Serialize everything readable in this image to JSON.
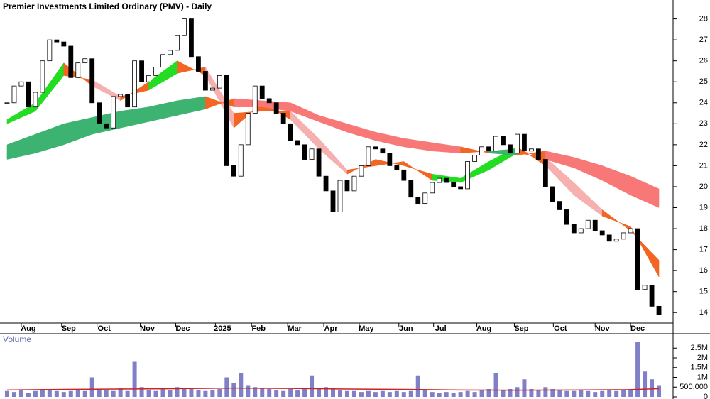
{
  "chart_data": {
    "type": "candlestick",
    "title": "Premier Investments Limited Ordinary (PMV) - Daily",
    "x": [
      0,
      1,
      2,
      3,
      4,
      5,
      6,
      7,
      8,
      9,
      10,
      11,
      12,
      13,
      14,
      15,
      16,
      17,
      18,
      19,
      20,
      21,
      22,
      23,
      24,
      25,
      26,
      27,
      28,
      29,
      30,
      31,
      32,
      33,
      34,
      35,
      36,
      37,
      38,
      39,
      40,
      41,
      42,
      43,
      44,
      45,
      46,
      47,
      48,
      49,
      50,
      51,
      52,
      53,
      54,
      55,
      56,
      57,
      58,
      59,
      60,
      61,
      62,
      63,
      64,
      65,
      66,
      67,
      68,
      69,
      70,
      71,
      72,
      73,
      74,
      75,
      76,
      77,
      78,
      79,
      80,
      81,
      82,
      83,
      84,
      85,
      86,
      87,
      88,
      89,
      90,
      91,
      92
    ],
    "close": [
      24.0,
      24.8,
      25.0,
      23.8,
      24.5,
      26.0,
      27.0,
      26.9,
      26.7,
      25.2,
      25.9,
      26.1,
      24.0,
      23.0,
      22.8,
      24.3,
      24.4,
      23.8,
      26.0,
      25.0,
      25.3,
      25.7,
      26.3,
      26.5,
      27.2,
      28.0,
      26.2,
      25.5,
      24.6,
      24.7,
      25.3,
      21.0,
      20.5,
      22.0,
      23.5,
      24.8,
      24.2,
      24.0,
      23.5,
      23.0,
      22.2,
      22.0,
      21.3,
      21.8,
      20.5,
      19.8,
      18.8,
      20.3,
      19.8,
      20.5,
      21.0,
      21.9,
      21.8,
      21.6,
      21.0,
      20.8,
      20.3,
      19.5,
      19.2,
      19.7,
      20.2,
      20.4,
      20.2,
      20.0,
      19.9,
      21.2,
      21.5,
      21.9,
      21.7,
      22.4,
      22.0,
      21.6,
      22.5,
      21.7,
      21.8,
      21.3,
      20.0,
      19.3,
      18.9,
      18.2,
      17.8,
      18.0,
      18.4,
      17.9,
      17.7,
      17.4,
      17.5,
      17.8,
      18.0,
      15.1,
      15.3,
      14.3,
      13.9
    ],
    "colors": {
      "up": "#ffffff",
      "down": "#000000"
    },
    "xlim": [
      -1,
      94
    ],
    "xticks": [
      {
        "value": 3,
        "label": "Aug"
      },
      {
        "value": 8.7,
        "label": "Sep"
      },
      {
        "value": 13.7,
        "label": "Oct"
      },
      {
        "value": 19.8,
        "label": "Nov"
      },
      {
        "value": 24.8,
        "label": "Dec"
      },
      {
        "value": 30.4,
        "label": "2025"
      },
      {
        "value": 35.5,
        "label": "Feb"
      },
      {
        "value": 40.6,
        "label": "Mar"
      },
      {
        "value": 45.7,
        "label": "Apr"
      },
      {
        "value": 50.7,
        "label": "May"
      },
      {
        "value": 56.3,
        "label": "Jun"
      },
      {
        "value": 61.2,
        "label": "Jul"
      },
      {
        "value": 67.3,
        "label": "Aug"
      },
      {
        "value": 72.6,
        "label": "Sep"
      },
      {
        "value": 78.1,
        "label": "Oct"
      },
      {
        "value": 84,
        "label": "Nov"
      },
      {
        "value": 89,
        "label": "Dec"
      }
    ],
    "ylim": [
      13.5,
      28.9
    ],
    "yticks": [
      14,
      15,
      16,
      17,
      18,
      19,
      20,
      21,
      22,
      23,
      24,
      25,
      26,
      27,
      28
    ],
    "ribbons": [
      {
        "x": [
          0,
          4,
          8,
          12,
          16,
          20,
          24,
          28,
          32,
          36,
          40,
          44,
          48,
          52,
          56,
          60,
          64,
          68,
          72,
          76,
          80,
          84,
          88,
          92
        ],
        "a": [
          23.2,
          24.0,
          25.9,
          24.8,
          24.1,
          25.0,
          26.0,
          25.3,
          22.8,
          24.0,
          23.2,
          21.8,
          20.6,
          21.3,
          21.0,
          20.6,
          20.4,
          21.2,
          21.9,
          21.0,
          19.6,
          18.6,
          18.1,
          15.7
        ],
        "b": [
          23.0,
          23.6,
          25.3,
          25.1,
          24.3,
          24.6,
          25.4,
          25.7,
          23.5,
          23.6,
          23.6,
          22.3,
          20.8,
          21.0,
          21.2,
          20.3,
          20.2,
          20.8,
          21.6,
          21.4,
          20.2,
          18.9,
          17.9,
          16.5
        ],
        "colors": {
          "rising": "#22dd22",
          "falling": "#f7b0b0",
          "crossing": "#f26522"
        }
      },
      {
        "x": [
          0,
          4,
          8,
          12,
          16,
          20,
          24,
          28,
          32,
          36,
          40,
          44,
          48,
          52,
          56,
          60,
          64,
          68,
          72,
          76,
          80,
          84,
          88,
          92
        ],
        "a": [
          22.0,
          22.5,
          23.0,
          23.3,
          23.6,
          23.8,
          24.1,
          24.3,
          23.8,
          23.8,
          23.6,
          23.1,
          22.6,
          22.2,
          21.9,
          21.7,
          21.6,
          21.7,
          21.8,
          21.3,
          20.9,
          20.3,
          19.6,
          19.0
        ],
        "b": [
          21.3,
          21.6,
          22.0,
          22.5,
          22.8,
          23.1,
          23.4,
          23.7,
          24.2,
          24.1,
          24.0,
          23.4,
          23.0,
          22.6,
          22.3,
          22.1,
          21.9,
          21.6,
          21.5,
          21.7,
          21.4,
          21.0,
          20.5,
          19.9
        ],
        "colors": {
          "rising": "#3cb371",
          "falling": "#f87878",
          "crossing": "#f26522"
        }
      }
    ],
    "volume": {
      "title": "Volume",
      "color": "#8080c8",
      "values": [
        300000,
        250000,
        350000,
        200000,
        300000,
        400000,
        350000,
        300000,
        250000,
        300000,
        350000,
        300000,
        1000000,
        400000,
        350000,
        300000,
        450000,
        300000,
        1800000,
        500000,
        350000,
        300000,
        400000,
        350000,
        500000,
        450000,
        400000,
        350000,
        300000,
        350000,
        400000,
        1000000,
        700000,
        1200000,
        600000,
        500000,
        450000,
        400000,
        350000,
        300000,
        400000,
        350000,
        400000,
        1100000,
        450000,
        500000,
        400000,
        350000,
        300000,
        300000,
        250000,
        300000,
        250000,
        300000,
        250000,
        300000,
        250000,
        300000,
        1100000,
        350000,
        250000,
        200000,
        250000,
        200000,
        250000,
        300000,
        250000,
        350000,
        400000,
        1200000,
        350000,
        400000,
        500000,
        900000,
        400000,
        350000,
        500000,
        400000,
        350000,
        300000,
        300000,
        350000,
        300000,
        250000,
        300000,
        350000,
        300000,
        350000,
        400000,
        2800000,
        1300000,
        900000,
        600000
      ],
      "ylim": [
        0,
        3200000
      ],
      "yticks": [
        0,
        {
          "value": 500000,
          "label": "500,000"
        },
        {
          "value": 1000000,
          "label": "1M"
        },
        {
          "value": 1500000,
          "label": "1.5M"
        },
        {
          "value": 2000000,
          "label": "2M"
        },
        {
          "value": 2500000,
          "label": "2.5M"
        }
      ],
      "average": {
        "x": [
          0,
          8,
          16,
          24,
          32,
          40,
          48,
          56,
          64,
          72,
          80,
          88,
          92
        ],
        "values": [
          350000,
          380000,
          400000,
          420000,
          450000,
          430000,
          400000,
          380000,
          350000,
          340000,
          350000,
          370000,
          420000
        ],
        "color": "#cc2222"
      }
    }
  }
}
